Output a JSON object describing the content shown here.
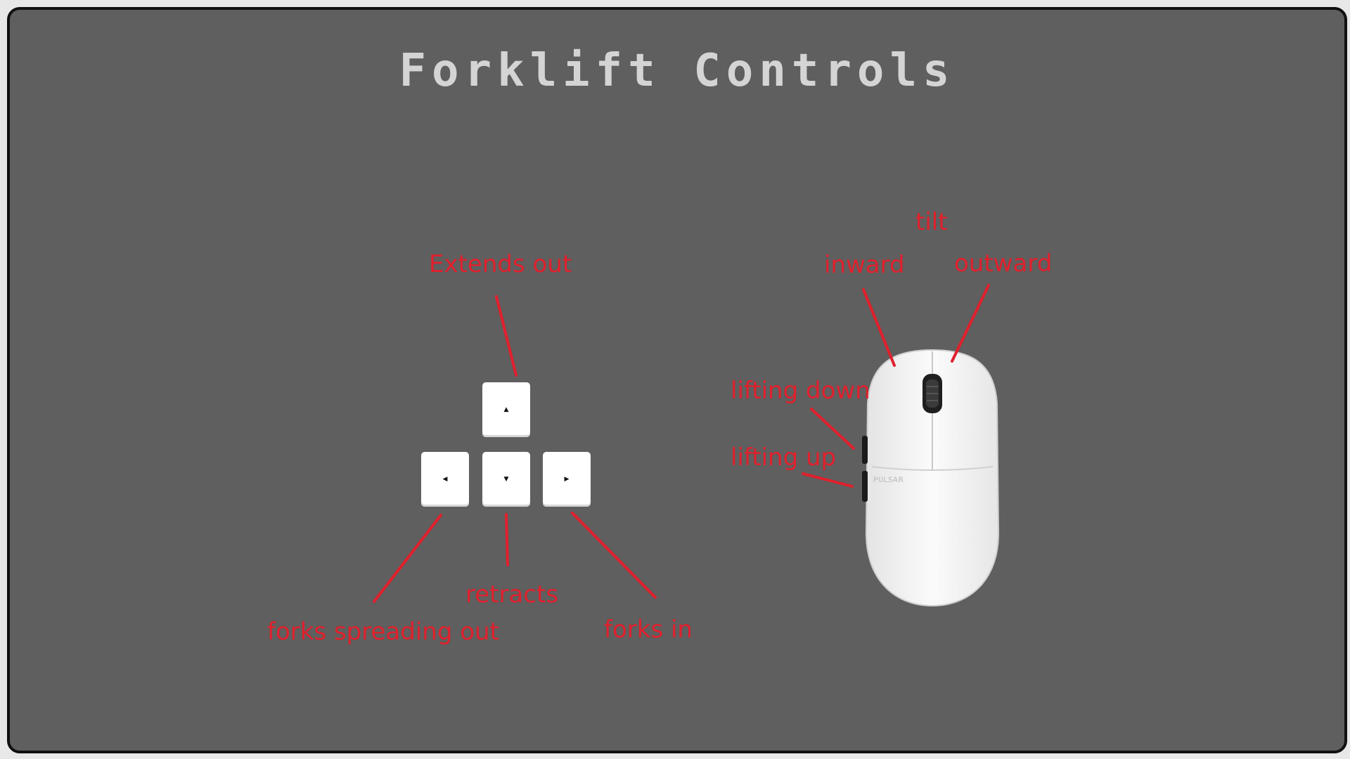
{
  "title": "Forklift Controls",
  "colors": {
    "background": "#5f5f5f",
    "frame_border": "#111111",
    "title": "#d4d4d4",
    "label": "#e0202c",
    "key": "#ffffff",
    "mouse_body": "#f2f2f2"
  },
  "keyboard": {
    "keys": [
      {
        "name": "up-arrow-key",
        "icon": "triangle-up-icon",
        "glyph": "▲"
      },
      {
        "name": "left-arrow-key",
        "icon": "triangle-left-icon",
        "glyph": "◀"
      },
      {
        "name": "down-arrow-key",
        "icon": "triangle-down-icon",
        "glyph": "▼"
      },
      {
        "name": "right-arrow-key",
        "icon": "triangle-right-icon",
        "glyph": "▶"
      }
    ],
    "labels": {
      "up": "Extends out",
      "down": "retracts",
      "left": "forks spreading out",
      "right": "forks in"
    }
  },
  "mouse": {
    "icon": "mouse-icon",
    "brand_text": "ᴘᴜʟsᴀʀ",
    "labels": {
      "tilt": "tilt",
      "inward": "inward",
      "outward": "outward",
      "lifting_down": "lifting down",
      "lifting_up": "lifting up"
    }
  }
}
